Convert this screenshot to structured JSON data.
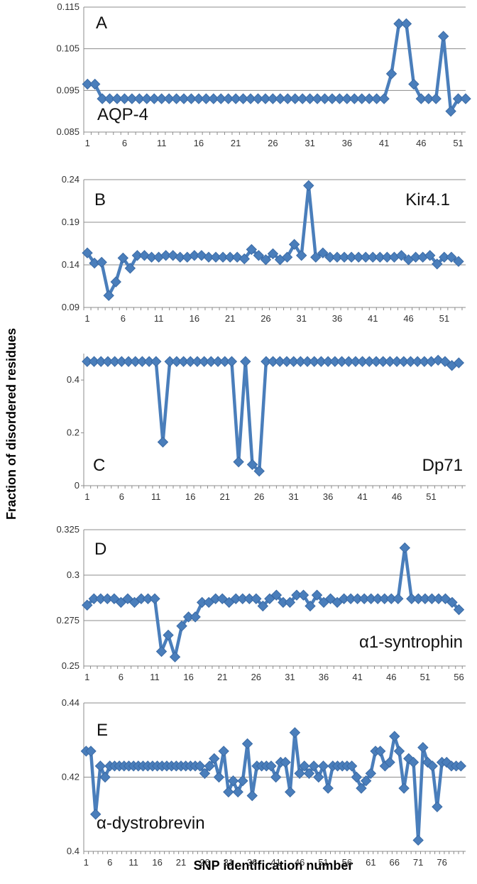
{
  "figure": {
    "ylabel": "Fraction of disordered residues",
    "xlabel": "SNP identification number"
  },
  "colors": {
    "series": "#4a7ebb",
    "marker_edge": "#3a6aa5",
    "grid": "#8c8c8c",
    "axis": "#8c8c8c"
  },
  "chart_data": [
    {
      "type": "line",
      "panel": "A",
      "label": "AQP-4",
      "ylim": [
        0.085,
        0.115
      ],
      "yticks": [
        "0.085",
        "0.095",
        "0.105",
        "0.115"
      ],
      "xticks": [
        "1",
        "6",
        "11",
        "16",
        "21",
        "26",
        "31",
        "36",
        "41",
        "46",
        "51"
      ],
      "grid": true,
      "x": [
        1,
        2,
        3,
        4,
        5,
        6,
        7,
        8,
        9,
        10,
        11,
        12,
        13,
        14,
        15,
        16,
        17,
        18,
        19,
        20,
        21,
        22,
        23,
        24,
        25,
        26,
        27,
        28,
        29,
        30,
        31,
        32,
        33,
        34,
        35,
        36,
        37,
        38,
        39,
        40,
        41,
        42,
        43,
        44,
        45,
        46,
        47,
        48,
        49,
        50,
        51,
        52
      ],
      "values": [
        0.0965,
        0.0965,
        0.093,
        0.093,
        0.093,
        0.093,
        0.093,
        0.093,
        0.093,
        0.093,
        0.093,
        0.093,
        0.093,
        0.093,
        0.093,
        0.093,
        0.093,
        0.093,
        0.093,
        0.093,
        0.093,
        0.093,
        0.093,
        0.093,
        0.093,
        0.093,
        0.093,
        0.093,
        0.093,
        0.093,
        0.093,
        0.093,
        0.093,
        0.093,
        0.093,
        0.093,
        0.093,
        0.093,
        0.093,
        0.093,
        0.093,
        0.099,
        0.111,
        0.111,
        0.0965,
        0.093,
        0.093,
        0.093,
        0.108,
        0.09,
        0.093,
        0.093
      ]
    },
    {
      "type": "line",
      "panel": "B",
      "label": "Kir4.1",
      "ylim": [
        0.09,
        0.24
      ],
      "yticks": [
        "0.09",
        "0.14",
        "0.19",
        "0.24"
      ],
      "xticks": [
        "1",
        "6",
        "11",
        "16",
        "21",
        "26",
        "31",
        "36",
        "41",
        "46",
        "51"
      ],
      "grid": true,
      "x": [
        1,
        2,
        3,
        4,
        5,
        6,
        7,
        8,
        9,
        10,
        11,
        12,
        13,
        14,
        15,
        16,
        17,
        18,
        19,
        20,
        21,
        22,
        23,
        24,
        25,
        26,
        27,
        28,
        29,
        30,
        31,
        32,
        33,
        34,
        35,
        36,
        37,
        38,
        39,
        40,
        41,
        42,
        43,
        44,
        45,
        46,
        47,
        48,
        49,
        50,
        51,
        52,
        53
      ],
      "values": [
        0.154,
        0.142,
        0.143,
        0.104,
        0.12,
        0.148,
        0.136,
        0.151,
        0.151,
        0.149,
        0.149,
        0.151,
        0.151,
        0.149,
        0.149,
        0.151,
        0.151,
        0.149,
        0.149,
        0.149,
        0.149,
        0.149,
        0.147,
        0.158,
        0.151,
        0.146,
        0.153,
        0.146,
        0.149,
        0.164,
        0.151,
        0.233,
        0.149,
        0.154,
        0.149,
        0.149,
        0.149,
        0.149,
        0.149,
        0.149,
        0.149,
        0.149,
        0.149,
        0.149,
        0.151,
        0.146,
        0.149,
        0.149,
        0.151,
        0.141,
        0.149,
        0.149,
        0.144
      ]
    },
    {
      "type": "line",
      "panel": "C",
      "label": "Dp71",
      "ylim": [
        0,
        0.5
      ],
      "yticks": [
        "0",
        "0.2",
        "0.4"
      ],
      "xticks": [
        "1",
        "6",
        "11",
        "16",
        "21",
        "26",
        "31",
        "36",
        "41",
        "46",
        "51"
      ],
      "grid": false,
      "x": [
        1,
        2,
        3,
        4,
        5,
        6,
        7,
        8,
        9,
        10,
        11,
        12,
        13,
        14,
        15,
        16,
        17,
        18,
        19,
        20,
        21,
        22,
        23,
        24,
        25,
        26,
        27,
        28,
        29,
        30,
        31,
        32,
        33,
        34,
        35,
        36,
        37,
        38,
        39,
        40,
        41,
        42,
        43,
        44,
        45,
        46,
        47,
        48,
        49,
        50,
        51,
        52,
        53,
        54,
        55
      ],
      "values": [
        0.47,
        0.47,
        0.47,
        0.47,
        0.47,
        0.47,
        0.47,
        0.47,
        0.47,
        0.47,
        0.47,
        0.165,
        0.47,
        0.47,
        0.47,
        0.47,
        0.47,
        0.47,
        0.47,
        0.47,
        0.47,
        0.47,
        0.09,
        0.47,
        0.08,
        0.055,
        0.47,
        0.47,
        0.47,
        0.47,
        0.47,
        0.47,
        0.47,
        0.47,
        0.47,
        0.47,
        0.47,
        0.47,
        0.47,
        0.47,
        0.47,
        0.47,
        0.47,
        0.47,
        0.47,
        0.47,
        0.47,
        0.47,
        0.47,
        0.47,
        0.47,
        0.475,
        0.47,
        0.455,
        0.465
      ]
    },
    {
      "type": "line",
      "panel": "D",
      "label": "α1-syntrophin",
      "ylim": [
        0.25,
        0.325
      ],
      "yticks": [
        "0.25",
        "0.275",
        "0.3",
        "0.325"
      ],
      "xticks": [
        "1",
        "6",
        "11",
        "16",
        "21",
        "26",
        "31",
        "36",
        "41",
        "46",
        "51",
        "56"
      ],
      "grid": true,
      "x": [
        1,
        2,
        3,
        4,
        5,
        6,
        7,
        8,
        9,
        10,
        11,
        12,
        13,
        14,
        15,
        16,
        17,
        18,
        19,
        20,
        21,
        22,
        23,
        24,
        25,
        26,
        27,
        28,
        29,
        30,
        31,
        32,
        33,
        34,
        35,
        36,
        37,
        38,
        39,
        40,
        41,
        42,
        43,
        44,
        45,
        46,
        47,
        48,
        49,
        50,
        51,
        52,
        53,
        54,
        55,
        56
      ],
      "values": [
        0.2835,
        0.287,
        0.287,
        0.287,
        0.287,
        0.285,
        0.287,
        0.285,
        0.287,
        0.287,
        0.287,
        0.258,
        0.267,
        0.255,
        0.272,
        0.277,
        0.277,
        0.285,
        0.285,
        0.287,
        0.287,
        0.285,
        0.287,
        0.287,
        0.287,
        0.287,
        0.283,
        0.287,
        0.289,
        0.285,
        0.285,
        0.289,
        0.289,
        0.283,
        0.289,
        0.285,
        0.287,
        0.285,
        0.287,
        0.287,
        0.287,
        0.287,
        0.287,
        0.287,
        0.287,
        0.287,
        0.287,
        0.315,
        0.287,
        0.287,
        0.287,
        0.287,
        0.287,
        0.287,
        0.285,
        0.281
      ]
    },
    {
      "type": "line",
      "panel": "E",
      "label": "α-dystrobrevin",
      "ylim": [
        0.4,
        0.44
      ],
      "yticks": [
        "0.4",
        "0.42",
        "0.44"
      ],
      "xticks": [
        "1",
        "6",
        "11",
        "16",
        "21",
        "26",
        "31",
        "36",
        "41",
        "46",
        "51",
        "56",
        "61",
        "66",
        "71",
        "76"
      ],
      "grid": true,
      "x": [
        1,
        2,
        3,
        4,
        5,
        6,
        7,
        8,
        9,
        10,
        11,
        12,
        13,
        14,
        15,
        16,
        17,
        18,
        19,
        20,
        21,
        22,
        23,
        24,
        25,
        26,
        27,
        28,
        29,
        30,
        31,
        32,
        33,
        34,
        35,
        36,
        37,
        38,
        39,
        40,
        41,
        42,
        43,
        44,
        45,
        46,
        47,
        48,
        49,
        50,
        51,
        52,
        53,
        54,
        55,
        56,
        57,
        58,
        59,
        60,
        61,
        62,
        63,
        64,
        65,
        66,
        67,
        68,
        69,
        70,
        71,
        72,
        73,
        74,
        75,
        76,
        77,
        78,
        79,
        80
      ],
      "values": [
        0.427,
        0.427,
        0.41,
        0.423,
        0.42,
        0.423,
        0.423,
        0.423,
        0.423,
        0.423,
        0.423,
        0.423,
        0.423,
        0.423,
        0.423,
        0.423,
        0.423,
        0.423,
        0.423,
        0.423,
        0.423,
        0.423,
        0.423,
        0.423,
        0.423,
        0.421,
        0.423,
        0.425,
        0.42,
        0.427,
        0.416,
        0.419,
        0.416,
        0.419,
        0.429,
        0.415,
        0.423,
        0.423,
        0.423,
        0.423,
        0.42,
        0.424,
        0.424,
        0.416,
        0.432,
        0.421,
        0.423,
        0.421,
        0.423,
        0.42,
        0.423,
        0.417,
        0.423,
        0.423,
        0.423,
        0.423,
        0.423,
        0.42,
        0.417,
        0.419,
        0.421,
        0.427,
        0.427,
        0.423,
        0.424,
        0.431,
        0.427,
        0.417,
        0.425,
        0.424,
        0.403,
        0.428,
        0.424,
        0.423,
        0.412,
        0.424,
        0.424,
        0.423,
        0.423,
        0.423
      ]
    }
  ]
}
